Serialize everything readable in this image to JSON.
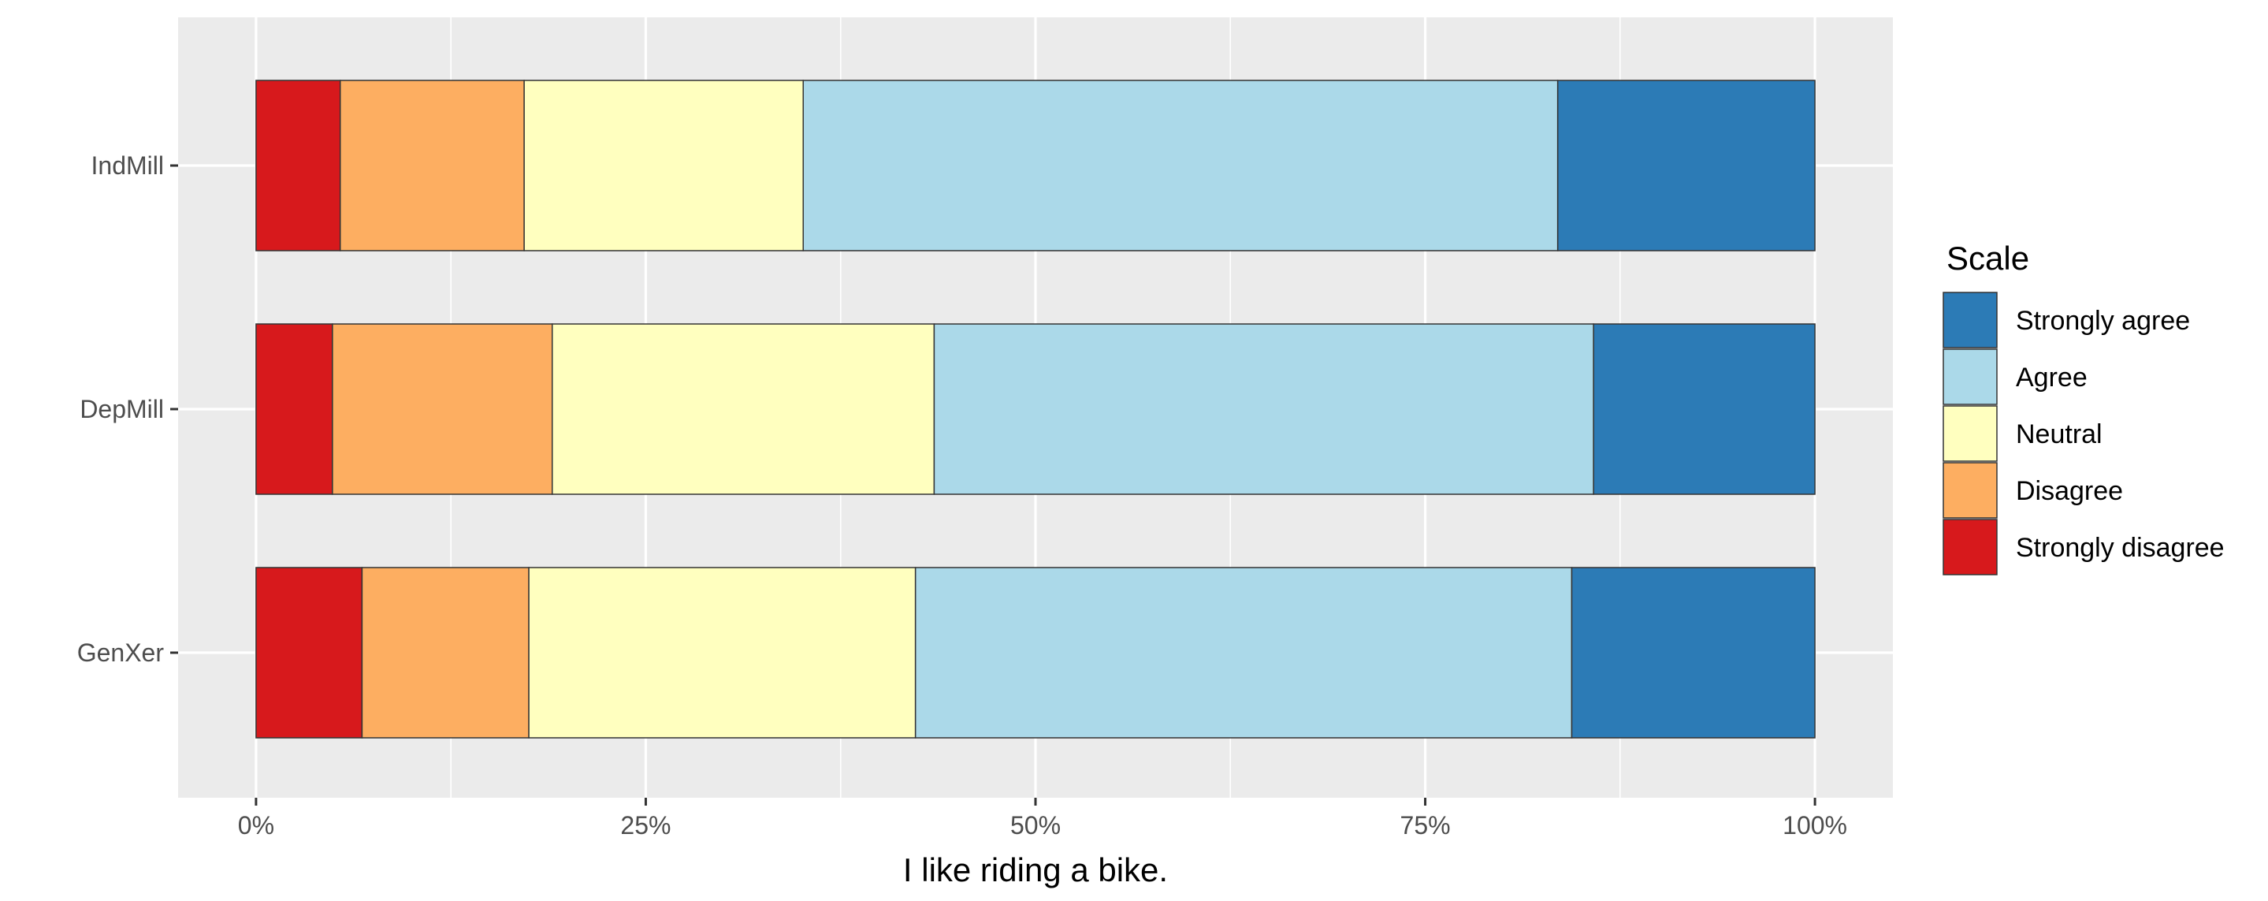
{
  "chart_data": {
    "type": "bar",
    "orientation": "horizontal",
    "stacked": true,
    "percent": true,
    "categories": [
      "IndMill",
      "DepMill",
      "GenXer"
    ],
    "series": [
      {
        "name": "Strongly disagree",
        "color": "#d7191c",
        "values": [
          5.4,
          4.9,
          6.8
        ]
      },
      {
        "name": "Disagree",
        "color": "#fdae61",
        "values": [
          11.8,
          14.1,
          10.7
        ]
      },
      {
        "name": "Neutral",
        "color": "#ffffbf",
        "values": [
          17.9,
          24.5,
          24.8
        ]
      },
      {
        "name": "Agree",
        "color": "#abd9e9",
        "values": [
          48.4,
          42.3,
          42.1
        ]
      },
      {
        "name": "Strongly agree",
        "color": "#2c7bb6",
        "values": [
          16.5,
          14.2,
          15.6
        ]
      }
    ],
    "xlabel": "I like riding a bike.",
    "ylabel": "",
    "xlim": [
      -5,
      105
    ],
    "x_ticks": [
      0,
      25,
      50,
      75,
      100
    ],
    "x_tick_labels": [
      "0%",
      "25%",
      "50%",
      "75%",
      "100%"
    ],
    "legend": {
      "title": "Scale",
      "position": "right",
      "order": [
        "Strongly agree",
        "Agree",
        "Neutral",
        "Disagree",
        "Strongly disagree"
      ]
    },
    "grid": true,
    "panel_background": "#ebebeb"
  }
}
